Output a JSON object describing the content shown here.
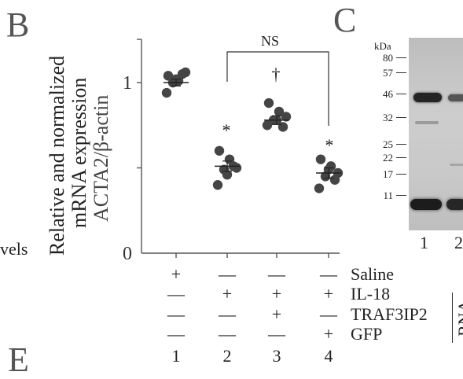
{
  "left_fragment": {
    "text": "vels"
  },
  "panel_b": {
    "letter": "B",
    "ylabel_lines": [
      "Relative and normalized",
      "mRNA expression",
      "ACTA2/β-actin"
    ],
    "ns_label": "NS",
    "significance": {
      "group2": "*",
      "group3": "†",
      "group4": "*"
    },
    "treatment_table": {
      "row_labels": [
        "Saline",
        "IL-18",
        "TRAF3IP2",
        "GFP"
      ],
      "rows": [
        [
          "+",
          "—",
          "—",
          "—"
        ],
        [
          "—",
          "+",
          "+",
          "+"
        ],
        [
          "—",
          "—",
          "+",
          "—"
        ],
        [
          "—",
          "—",
          "—",
          "+"
        ]
      ],
      "column_numbers": [
        "1",
        "2",
        "3",
        "4"
      ]
    }
  },
  "chart_data": {
    "type": "scatter",
    "ylabel": "Relative and normalized mRNA expression ACTA2/β-actin",
    "ylim": [
      0,
      1.25
    ],
    "yticks": [
      "0",
      "1"
    ],
    "groups": [
      "1",
      "2",
      "3",
      "4"
    ],
    "means": [
      1.0,
      0.51,
      0.78,
      0.47
    ],
    "sem": [
      0.02,
      0.03,
      0.025,
      0.03
    ],
    "points": [
      [
        1.04,
        1.01,
        1.06,
        1.0,
        1.05,
        0.94,
        1.02
      ],
      [
        0.6,
        0.55,
        0.5,
        0.49,
        0.51,
        0.4,
        0.46
      ],
      [
        0.88,
        0.83,
        0.8,
        0.78,
        0.74,
        0.75,
        0.78
      ],
      [
        0.55,
        0.51,
        0.47,
        0.45,
        0.43,
        0.38,
        0.49
      ]
    ]
  },
  "panel_c": {
    "letter": "C",
    "kda_label": "kDa",
    "markers": [
      "80",
      "57",
      "46",
      "32",
      "25",
      "22",
      "17",
      "11"
    ],
    "lane_numbers": [
      "1",
      "2"
    ]
  },
  "panel_e": {
    "letter": "E"
  },
  "right_fragment": {
    "text": "RNA"
  },
  "colors": {
    "dots": "#454545",
    "axis": "#555555",
    "blot_bg": "#c8c8c8",
    "band": "#1e1e1e"
  }
}
